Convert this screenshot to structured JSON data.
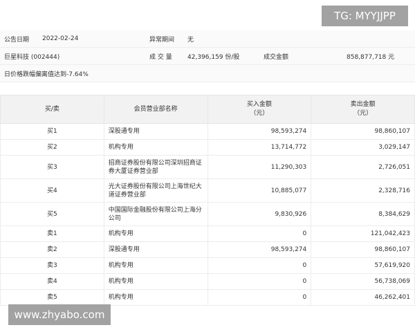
{
  "info": {
    "date_label": "公告日期",
    "date": "2022-02-24",
    "period_label": "异常期间",
    "period": "无",
    "stock": "巨星科技 (002444)",
    "volume_label": "成 交 量",
    "volume": "42,396,159 份/股",
    "amount_label": "成交金额",
    "amount": "858,877,718 元",
    "reason": "日价格跌幅偏离值达到-7.64%"
  },
  "table": {
    "headers": [
      "买/卖",
      "会员营业部名称",
      "买入金额\n（元）",
      "卖出金额\n（元）"
    ],
    "rows": [
      [
        "买1",
        "深股通专用",
        "98,593,274",
        "98,860,107"
      ],
      [
        "买2",
        "机构专用",
        "13,714,772",
        "3,029,147"
      ],
      [
        "买3",
        "招商证券股份有限公司深圳招商证券大厦证券营业部",
        "11,290,303",
        "2,726,051"
      ],
      [
        "买4",
        "光大证券股份有限公司上海世纪大道证券营业部",
        "10,885,077",
        "2,328,716"
      ],
      [
        "买5",
        "中国国际金融股份有限公司上海分公司",
        "9,830,926",
        "8,384,629"
      ],
      [
        "卖1",
        "机构专用",
        "0",
        "121,042,423"
      ],
      [
        "卖2",
        "深股通专用",
        "98,593,274",
        "98,860,107"
      ],
      [
        "卖3",
        "机构专用",
        "0",
        "57,619,920"
      ],
      [
        "卖4",
        "机构专用",
        "0",
        "56,738,069"
      ],
      [
        "卖5",
        "机构专用",
        "0",
        "46,262,401"
      ]
    ]
  },
  "watermarks": {
    "top": "TG: MYYJJPP",
    "bottom": "www.zhyabo.com"
  }
}
